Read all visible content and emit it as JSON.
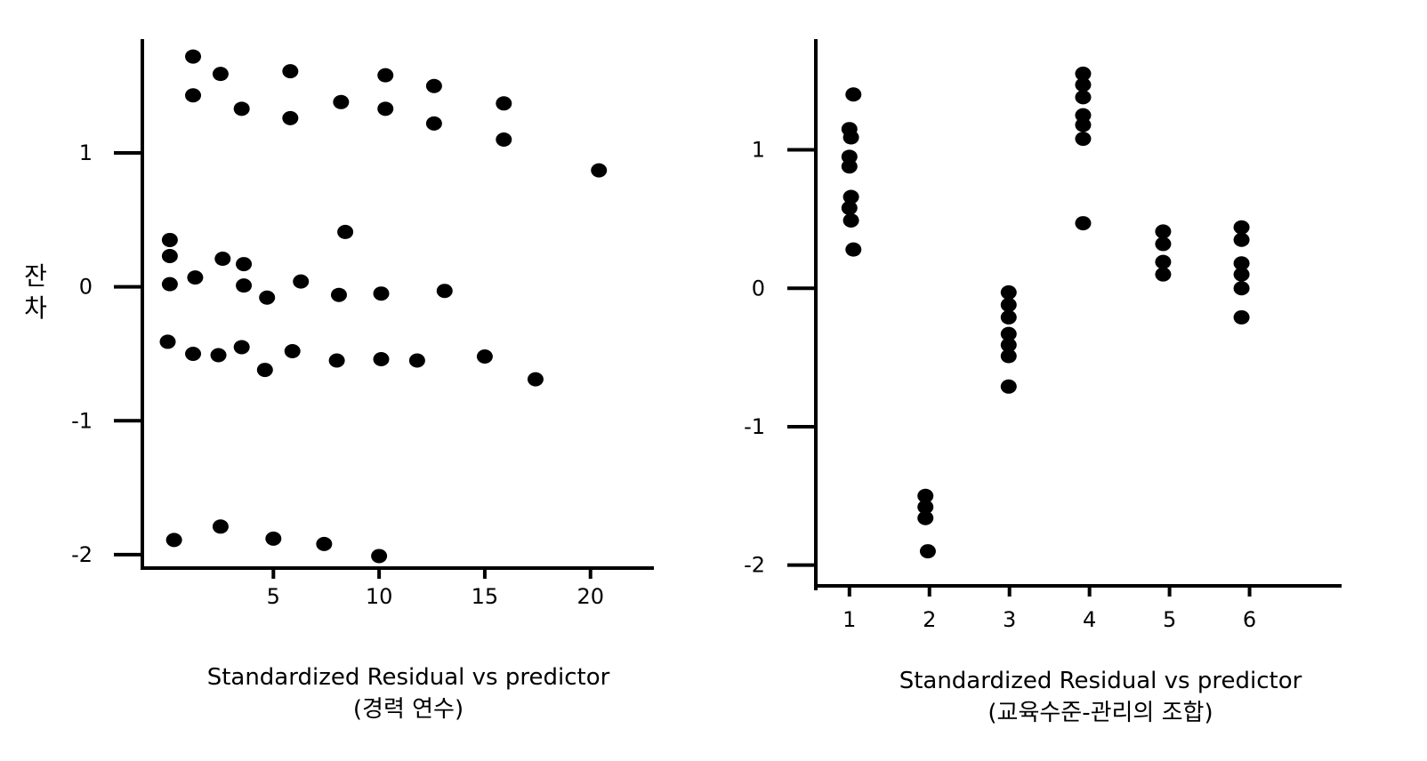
{
  "chart_data": [
    {
      "type": "scatter",
      "title": "",
      "ylabel": "잔\n차",
      "xlabel_line1": "Standardized Residual vs predictor",
      "xlabel_line2": "(경력 연수)",
      "xlim": [
        -1.2,
        23
      ],
      "ylim": [
        -2.1,
        1.85
      ],
      "xticks": [
        5,
        10,
        15,
        20
      ],
      "yticks": [
        1,
        0,
        -1,
        -2
      ],
      "grid": false,
      "points": [
        {
          "x": 1.2,
          "y": 1.72
        },
        {
          "x": 1.2,
          "y": 1.43
        },
        {
          "x": 2.5,
          "y": 1.59
        },
        {
          "x": 3.5,
          "y": 1.33
        },
        {
          "x": 5.8,
          "y": 1.61
        },
        {
          "x": 5.8,
          "y": 1.26
        },
        {
          "x": 8.2,
          "y": 1.38
        },
        {
          "x": 10.3,
          "y": 1.58
        },
        {
          "x": 10.3,
          "y": 1.33
        },
        {
          "x": 12.6,
          "y": 1.5
        },
        {
          "x": 12.6,
          "y": 1.22
        },
        {
          "x": 15.9,
          "y": 1.37
        },
        {
          "x": 15.9,
          "y": 1.1
        },
        {
          "x": 20.4,
          "y": 0.87
        },
        {
          "x": 0.1,
          "y": 0.35
        },
        {
          "x": 0.1,
          "y": 0.23
        },
        {
          "x": 0.1,
          "y": 0.02
        },
        {
          "x": 1.3,
          "y": 0.07
        },
        {
          "x": 2.6,
          "y": 0.21
        },
        {
          "x": 3.6,
          "y": 0.17
        },
        {
          "x": 3.6,
          "y": 0.01
        },
        {
          "x": 4.7,
          "y": -0.08
        },
        {
          "x": 6.3,
          "y": 0.04
        },
        {
          "x": 8.4,
          "y": 0.41
        },
        {
          "x": 8.1,
          "y": -0.06
        },
        {
          "x": 10.1,
          "y": -0.05
        },
        {
          "x": 13.1,
          "y": -0.03
        },
        {
          "x": 0.0,
          "y": -0.41
        },
        {
          "x": 1.2,
          "y": -0.5
        },
        {
          "x": 2.4,
          "y": -0.51
        },
        {
          "x": 3.5,
          "y": -0.45
        },
        {
          "x": 4.6,
          "y": -0.62
        },
        {
          "x": 5.9,
          "y": -0.48
        },
        {
          "x": 8.0,
          "y": -0.55
        },
        {
          "x": 10.1,
          "y": -0.54
        },
        {
          "x": 11.8,
          "y": -0.55
        },
        {
          "x": 15.0,
          "y": -0.52
        },
        {
          "x": 17.4,
          "y": -0.69
        },
        {
          "x": 0.3,
          "y": -1.89
        },
        {
          "x": 2.5,
          "y": -1.79
        },
        {
          "x": 5.0,
          "y": -1.88
        },
        {
          "x": 7.4,
          "y": -1.92
        },
        {
          "x": 10.0,
          "y": -2.01
        }
      ]
    },
    {
      "type": "scatter",
      "title": "",
      "ylabel": "",
      "xlabel_line1": "Standardized Residual vs predictor",
      "xlabel_line2": "(교육수준-관리의 조합)",
      "xlim": [
        0.58,
        7.15
      ],
      "ylim": [
        -2.15,
        1.8
      ],
      "xticks": [
        1,
        2,
        3,
        4,
        5,
        6
      ],
      "yticks": [
        1,
        0,
        -1,
        -2
      ],
      "grid": false,
      "points": [
        {
          "x": 1.05,
          "y": 1.4
        },
        {
          "x": 1.0,
          "y": 1.15
        },
        {
          "x": 1.02,
          "y": 1.09
        },
        {
          "x": 1.0,
          "y": 0.95
        },
        {
          "x": 1.0,
          "y": 0.88
        },
        {
          "x": 1.02,
          "y": 0.66
        },
        {
          "x": 1.0,
          "y": 0.58
        },
        {
          "x": 1.02,
          "y": 0.49
        },
        {
          "x": 1.05,
          "y": 0.28
        },
        {
          "x": 1.95,
          "y": -1.5
        },
        {
          "x": 1.95,
          "y": -1.58
        },
        {
          "x": 1.95,
          "y": -1.66
        },
        {
          "x": 1.98,
          "y": -1.9
        },
        {
          "x": 2.99,
          "y": -0.03
        },
        {
          "x": 2.99,
          "y": -0.12
        },
        {
          "x": 2.99,
          "y": -0.21
        },
        {
          "x": 2.99,
          "y": -0.33
        },
        {
          "x": 2.99,
          "y": -0.41
        },
        {
          "x": 2.99,
          "y": -0.49
        },
        {
          "x": 2.99,
          "y": -0.71
        },
        {
          "x": 3.92,
          "y": 1.55
        },
        {
          "x": 3.92,
          "y": 1.47
        },
        {
          "x": 3.92,
          "y": 1.38
        },
        {
          "x": 3.92,
          "y": 1.25
        },
        {
          "x": 3.92,
          "y": 1.18
        },
        {
          "x": 3.92,
          "y": 1.08
        },
        {
          "x": 3.92,
          "y": 0.47
        },
        {
          "x": 4.92,
          "y": 0.41
        },
        {
          "x": 4.92,
          "y": 0.32
        },
        {
          "x": 4.92,
          "y": 0.19
        },
        {
          "x": 4.92,
          "y": 0.1
        },
        {
          "x": 5.9,
          "y": 0.44
        },
        {
          "x": 5.9,
          "y": 0.35
        },
        {
          "x": 5.9,
          "y": 0.18
        },
        {
          "x": 5.9,
          "y": 0.1
        },
        {
          "x": 5.9,
          "y": 0.0
        },
        {
          "x": 5.9,
          "y": -0.21
        }
      ]
    }
  ]
}
